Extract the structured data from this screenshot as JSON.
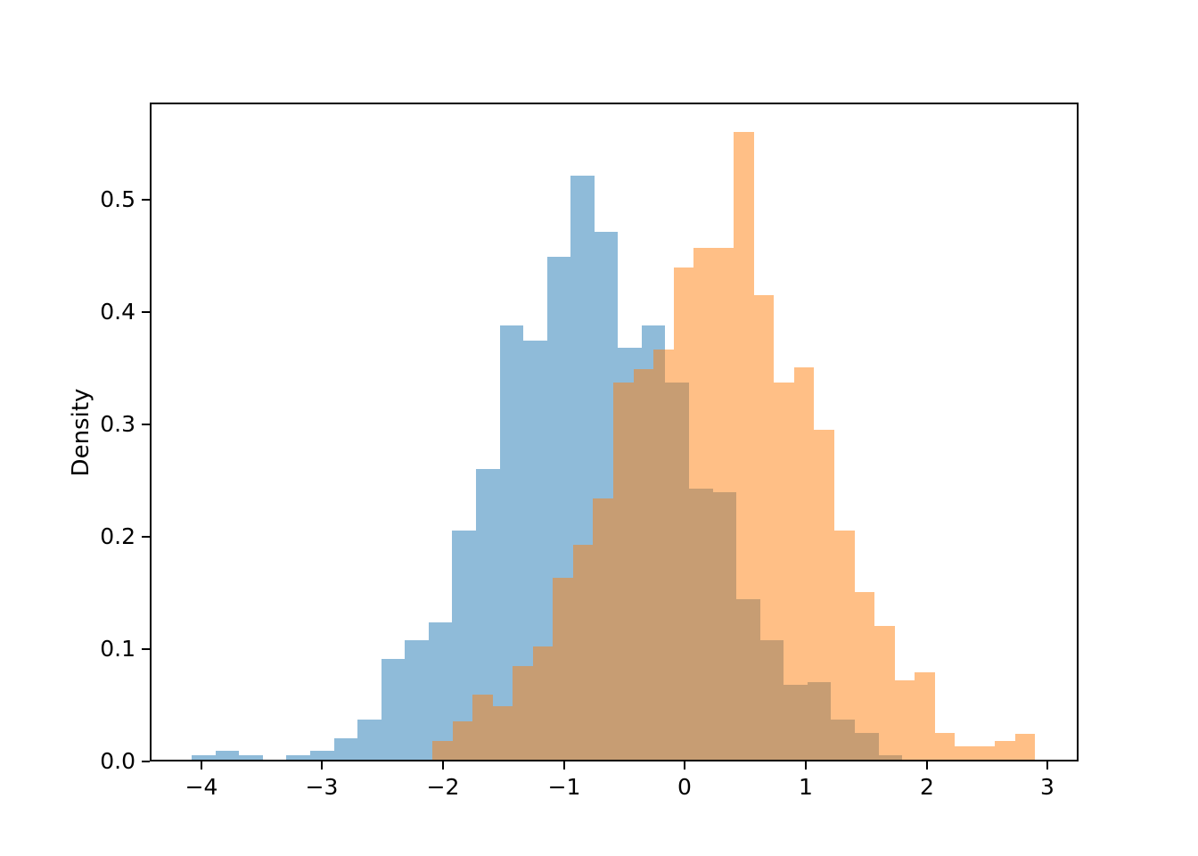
{
  "figure": {
    "background": "#ffffff",
    "title": "",
    "xlabel": "",
    "ylabel": "Density"
  },
  "chart_data": {
    "type": "bar",
    "subtype": "overlaid-density-histograms",
    "title": "",
    "xlabel": "",
    "ylabel": "Density",
    "xlim": [
      -4.425,
      3.256
    ],
    "ylim": [
      0,
      0.5867
    ],
    "grid": "off",
    "legend": "none",
    "x_ticks": [
      -4,
      -3,
      -2,
      -1,
      0,
      1,
      2,
      3
    ],
    "x_tick_labels": [
      "−4",
      "−3",
      "−2",
      "−1",
      "0",
      "1",
      "2",
      "3"
    ],
    "y_ticks": [
      0.0,
      0.1,
      0.2,
      0.3,
      0.4,
      0.5
    ],
    "y_tick_labels": [
      "0.0",
      "0.1",
      "0.2",
      "0.3",
      "0.4",
      "0.5"
    ],
    "series": [
      {
        "name": "histogram-blue",
        "color": "#1f77b4",
        "alpha": 0.5,
        "fill_rgba": "rgba(31,119,180,0.5)",
        "bin_start": -4.077,
        "bin_width": 0.1958,
        "densities": [
          0.004,
          0.008,
          0.004,
          0.0,
          0.004,
          0.008,
          0.019,
          0.036,
          0.09,
          0.106,
          0.122,
          0.204,
          0.259,
          0.387,
          0.373,
          0.448,
          0.52,
          0.47,
          0.367,
          0.387,
          0.336,
          0.241,
          0.238,
          0.143,
          0.106,
          0.067,
          0.069,
          0.036,
          0.024,
          0.004
        ]
      },
      {
        "name": "histogram-orange",
        "color": "#ff7f0e",
        "alpha": 0.5,
        "fill_rgba": "rgba(255,127,14,0.5)",
        "bin_start": -2.088,
        "bin_width": 0.1662,
        "densities": [
          0.017,
          0.034,
          0.058,
          0.048,
          0.083,
          0.101,
          0.162,
          0.191,
          0.233,
          0.336,
          0.348,
          0.365,
          0.438,
          0.456,
          0.456,
          0.559,
          0.414,
          0.336,
          0.349,
          0.294,
          0.204,
          0.149,
          0.119,
          0.071,
          0.078,
          0.024,
          0.012,
          0.012,
          0.017,
          0.023
        ]
      }
    ]
  }
}
